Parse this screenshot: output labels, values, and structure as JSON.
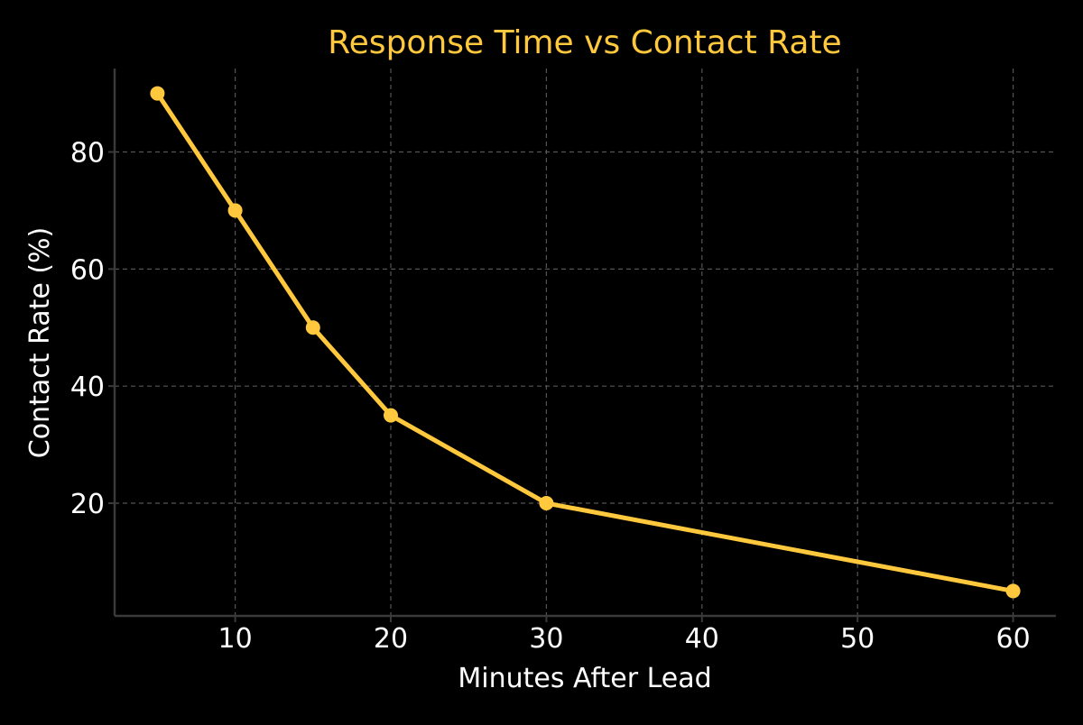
{
  "chart_data": {
    "type": "line",
    "title": "Response Time vs Contact Rate",
    "xlabel": "Minutes After Lead",
    "ylabel": "Contact Rate (%)",
    "x": [
      5,
      10,
      15,
      20,
      30,
      60
    ],
    "series": [
      {
        "values": [
          90,
          70,
          50,
          35,
          20,
          5
        ]
      }
    ],
    "xlim": [
      2.25,
      62.75
    ],
    "ylim": [
      0.75,
      94.25
    ],
    "xticks": [
      10,
      20,
      30,
      40,
      50,
      60
    ],
    "yticks": [
      20,
      40,
      60,
      80
    ],
    "grid": true,
    "colors": {
      "background": "#000000",
      "line": "#ffc83d",
      "title": "#ffc83d",
      "text": "#ffffff",
      "grid": "#555555",
      "spine": "#3a3a3a"
    }
  }
}
